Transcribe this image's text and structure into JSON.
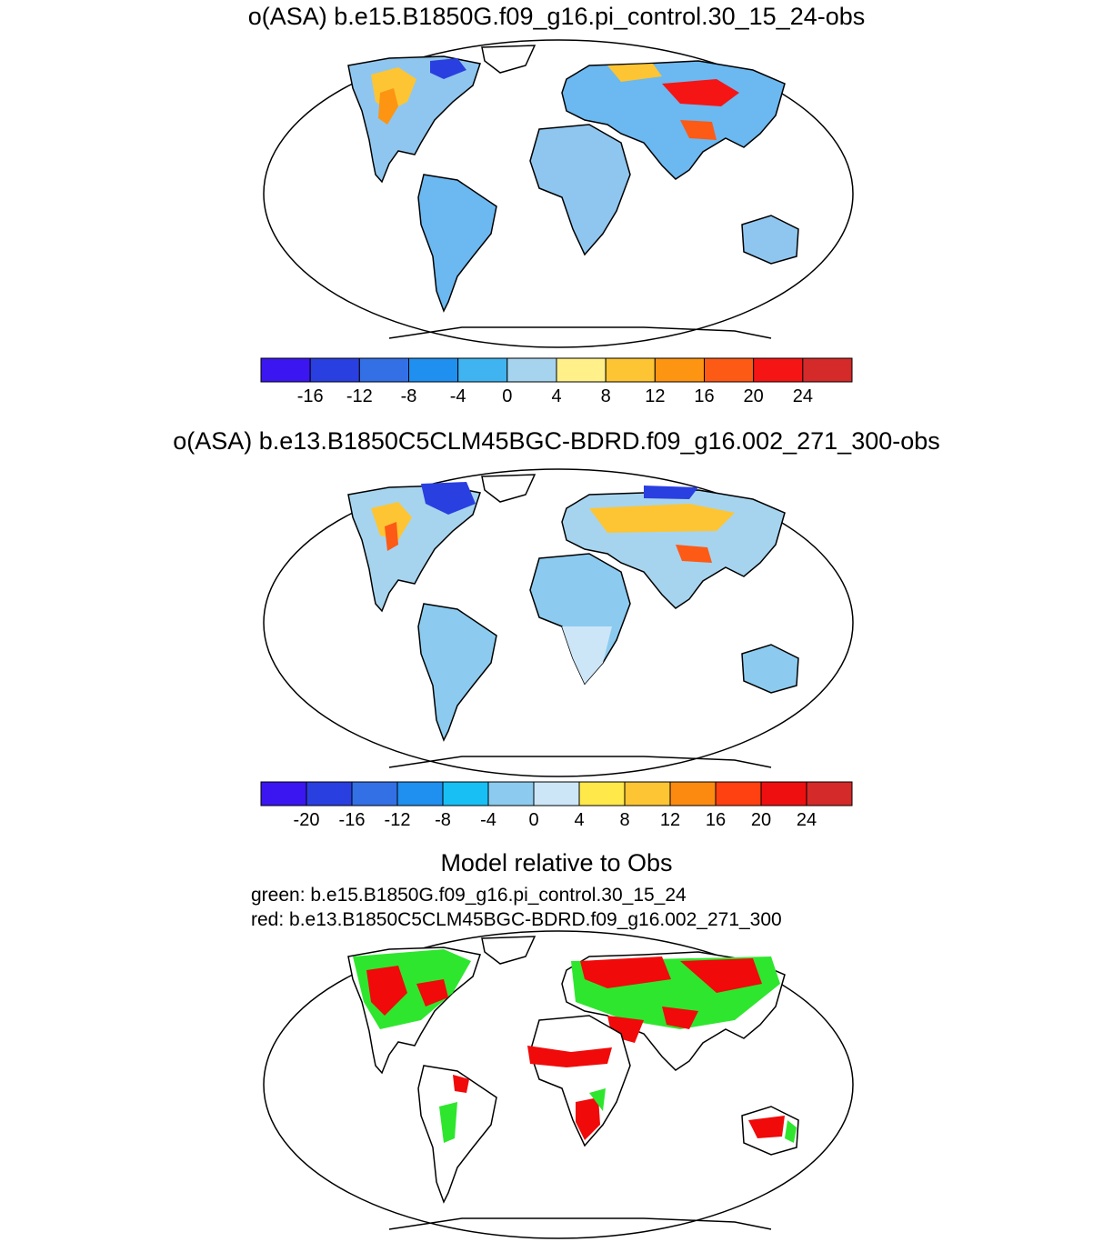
{
  "panels": [
    {
      "title": "o(ASA) b.e15.B1850G.f09_g16.pi_control.30_15_24-obs",
      "colorbar": {
        "colors": [
          "#3b16f0",
          "#2a3fe0",
          "#3370e6",
          "#1f8ff0",
          "#40b4f0",
          "#a6d4ef",
          "#fff08a",
          "#fdc533",
          "#fd9412",
          "#fd5a16",
          "#f51515",
          "#d42a2a"
        ],
        "labels": [
          "-16",
          "-12",
          "-8",
          "-4",
          "0",
          "4",
          "8",
          "12",
          "16",
          "20",
          "24"
        ]
      }
    },
    {
      "title": "o(ASA) b.e13.B1850C5CLM45BGC-BDRD.f09_g16.002_271_300-obs",
      "colorbar": {
        "colors": [
          "#3b16f0",
          "#2a3fe0",
          "#3370e6",
          "#1f8ff0",
          "#18bff5",
          "#8ccbef",
          "#cce6f7",
          "#ffe84a",
          "#fdc533",
          "#fd8a10",
          "#ff4010",
          "#ee1010",
          "#d42a2a"
        ],
        "labels": [
          "-20",
          "-16",
          "-12",
          "-8",
          "-4",
          "0",
          "4",
          "8",
          "12",
          "16",
          "20",
          "24"
        ]
      }
    },
    {
      "title": "Model relative to Obs",
      "legend_green": "green: b.e15.B1850G.f09_g16.pi_control.30_15_24",
      "legend_red": "red: b.e13.B1850C5CLM45BGC-BDRD.f09_g16.002_271_300"
    }
  ],
  "colors": {
    "green": "#2ee62e",
    "red": "#f00a0a",
    "land_light": "#a6d4ef",
    "land_mid": "#6cb8f0",
    "ocean": "#ffffff"
  }
}
